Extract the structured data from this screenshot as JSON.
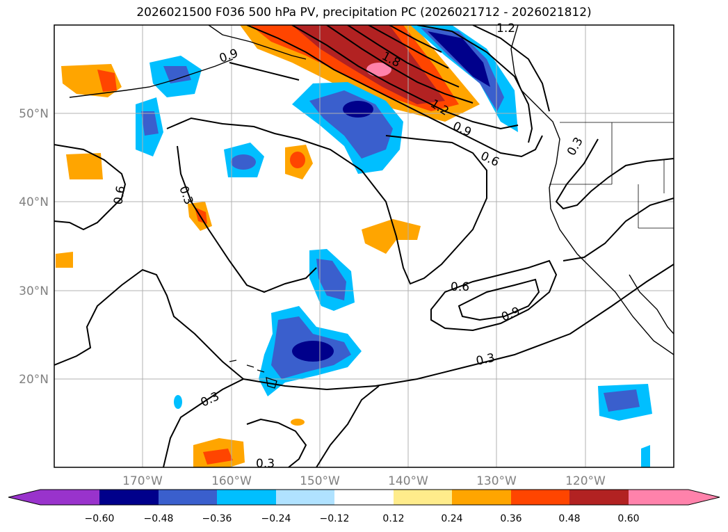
{
  "title": "2026021500 F036 500 hPa PV, precipitation PC (2026021712 - 2026021812)",
  "map": {
    "lat_labels": [
      "50°N",
      "40°N",
      "30°N",
      "20°N"
    ],
    "lon_labels": [
      "170°W",
      "160°W",
      "150°W",
      "140°W",
      "130°W",
      "120°W"
    ],
    "contour_labels": [
      "1.2",
      "1.8",
      "0.9",
      "0.6",
      "0.3",
      "0.3",
      "0.6",
      "0.6",
      "0.9",
      "0.3",
      "0.3",
      "0.3",
      "1.2",
      "0.9"
    ]
  },
  "colorbar": {
    "ticks": [
      "−0.60",
      "−0.48",
      "−0.36",
      "−0.24",
      "−0.12",
      "0.12",
      "0.24",
      "0.36",
      "0.48",
      "0.60"
    ],
    "colors": [
      "#9933cc",
      "#00008b",
      "#3a5fcd",
      "#00bfff",
      "#b0e2ff",
      "#ffffff",
      "#ffec8b",
      "#ffa500",
      "#ff4500",
      "#b22222",
      "#ff82ab"
    ]
  }
}
